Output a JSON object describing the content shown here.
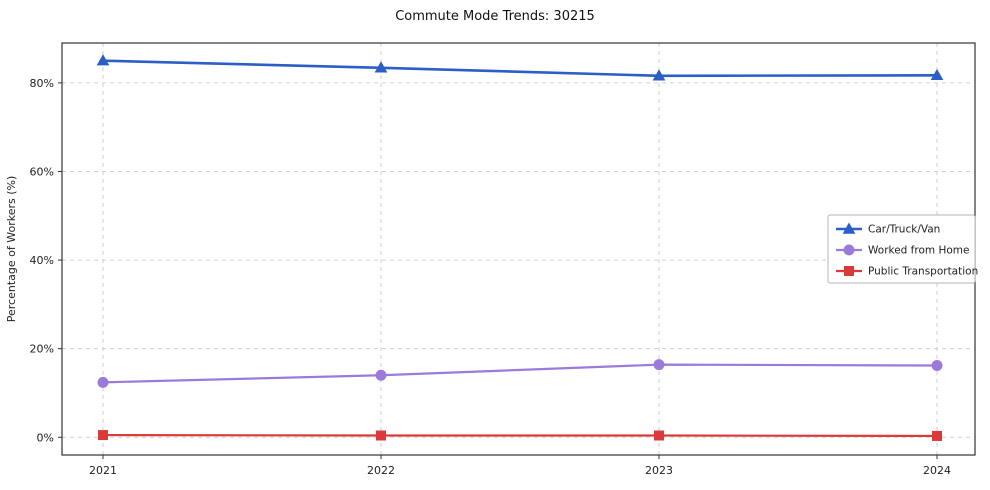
{
  "chart_data": {
    "type": "line",
    "title": "Commute Mode Trends: 30215",
    "xlabel": "",
    "ylabel": "Percentage of Workers (%)",
    "x": [
      "2021",
      "2022",
      "2023",
      "2024"
    ],
    "ylim": [
      -4,
      89
    ],
    "yticks": [
      0,
      20,
      40,
      60,
      80
    ],
    "ytick_labels": [
      "0%",
      "20%",
      "40%",
      "60%",
      "80%"
    ],
    "grid": true,
    "legend_position": "center right",
    "series": [
      {
        "name": "Car/Truck/Van",
        "color": "#2b5fc7",
        "marker": "triangle",
        "line_width": 2.6,
        "values": [
          85.0,
          83.4,
          81.6,
          81.7
        ]
      },
      {
        "name": "Worked from Home",
        "color": "#9a7bdb",
        "marker": "circle",
        "line_width": 2.2,
        "values": [
          12.4,
          14.0,
          16.4,
          16.2
        ]
      },
      {
        "name": "Public Transportation",
        "color": "#d93b3b",
        "marker": "square",
        "line_width": 2.2,
        "values": [
          0.5,
          0.4,
          0.4,
          0.3
        ]
      }
    ],
    "colors": {
      "grid": "#cfcfcf",
      "axis": "#333333",
      "tick_text": "#222222",
      "legend_border": "#b5b5b5",
      "background": "#ffffff"
    }
  }
}
